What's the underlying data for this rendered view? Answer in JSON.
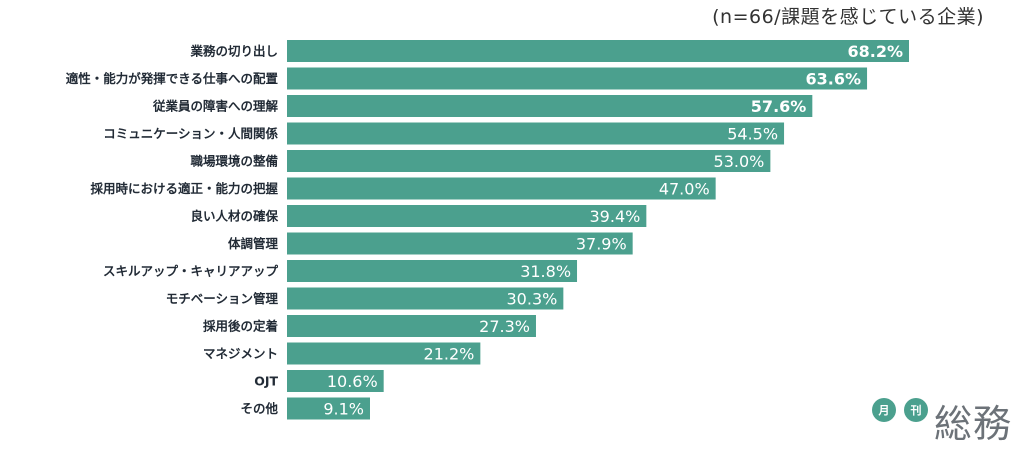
{
  "note": "(n=66/課題を感じている企業)",
  "colors": {
    "bar": "#4ba08e",
    "label": "#222b36",
    "value": "#ffffff"
  },
  "chart_data": {
    "type": "bar",
    "orientation": "horizontal",
    "categories": [
      "業務の切り出し",
      "適性・能力が発揮できる仕事への配置",
      "従業員の障害への理解",
      "コミュニケーション・人間関係",
      "職場環境の整備",
      "採用時における適正・能力の把握",
      "良い人材の確保",
      "体調管理",
      "スキルアップ・キャリアアップ",
      "モチベーション管理",
      "採用後の定着",
      "マネジメント",
      "OJT",
      "その他"
    ],
    "values": [
      68.2,
      63.6,
      57.6,
      54.5,
      53.0,
      47.0,
      39.4,
      37.9,
      31.8,
      30.3,
      27.3,
      21.2,
      10.6,
      9.1
    ],
    "value_labels": [
      "68.2%",
      "63.6%",
      "57.6%",
      "54.5%",
      "53.0%",
      "47.0%",
      "39.4%",
      "37.9%",
      "31.8%",
      "30.3%",
      "27.3%",
      "21.2%",
      "10.6%",
      "9.1%"
    ],
    "bold_labels_count": 3,
    "unit": "%",
    "grid": false,
    "legend": "none"
  },
  "logo": {
    "badge_1": "月",
    "badge_2": "刊",
    "word": "総務"
  }
}
